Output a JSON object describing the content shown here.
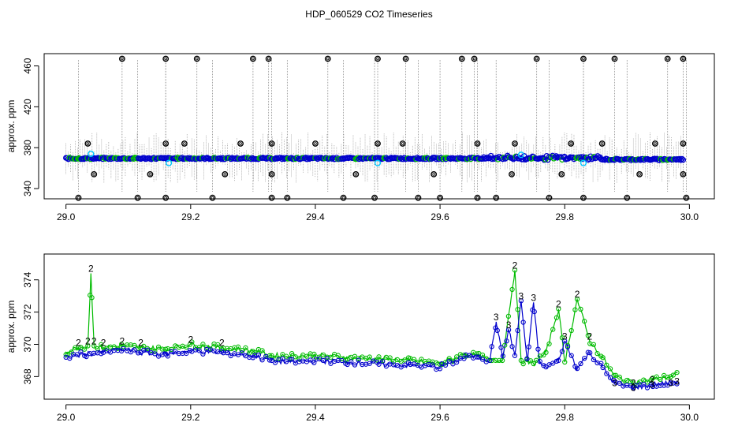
{
  "title": "HDP_060529  CO2 Timeseries",
  "colors": {
    "black": "#000000",
    "grey": "#8c8c8c",
    "blue": "#0000cc",
    "green": "#00bb00",
    "cyan": "#00c8ff"
  },
  "chart_data": [
    {
      "type": "scatter",
      "ylabel": "approx. ppm",
      "xlabel": "",
      "xlim": [
        28.965,
        30.04
      ],
      "ylim": [
        330,
        472
      ],
      "xticks": [
        "29.0",
        "29.2",
        "29.4",
        "29.6",
        "29.8",
        "30.0"
      ],
      "xtick_values": [
        29.0,
        29.2,
        29.4,
        29.6,
        29.8,
        30.0
      ],
      "yticks": [
        "340",
        "380",
        "420",
        "460"
      ],
      "ytick_values": [
        340,
        380,
        420,
        460
      ],
      "baseline_ppm": 369.5,
      "grey_spike_bands": [
        [
          370,
          392
        ],
        [
          352,
          370
        ]
      ],
      "outliers_high": [
        29.09,
        29.16,
        29.21,
        29.3,
        29.325,
        29.42,
        29.5,
        29.545,
        29.635,
        29.655,
        29.755,
        29.83,
        29.88,
        29.965,
        29.99
      ],
      "outliers_mid_high": [
        29.035,
        29.16,
        29.19,
        29.28,
        29.33,
        29.4,
        29.5,
        29.54,
        29.66,
        29.72,
        29.81,
        29.86,
        29.945,
        29.99
      ],
      "outliers_mid_low": [
        29.045,
        29.135,
        29.255,
        29.33,
        29.465,
        29.59,
        29.715,
        29.795,
        29.92,
        29.99
      ],
      "outliers_low": [
        29.02,
        29.115,
        29.16,
        29.235,
        29.33,
        29.355,
        29.445,
        29.495,
        29.565,
        29.6,
        29.66,
        29.69,
        29.775,
        29.83,
        29.9,
        29.995
      ],
      "cyan_points": [
        [
          29.04,
          374
        ],
        [
          29.165,
          365
        ],
        [
          29.5,
          365
        ],
        [
          29.73,
          373
        ],
        [
          29.83,
          365
        ]
      ]
    },
    {
      "type": "line",
      "ylabel": "approx. ppm",
      "xlabel": "",
      "xlim": [
        28.965,
        30.04
      ],
      "ylim": [
        366.6,
        375.6
      ],
      "xticks": [
        "29.0",
        "29.2",
        "29.4",
        "29.6",
        "29.8",
        "30.0"
      ],
      "xtick_values": [
        29.0,
        29.2,
        29.4,
        29.6,
        29.8,
        30.0
      ],
      "yticks": [
        "368",
        "370",
        "372",
        "374"
      ],
      "ytick_values": [
        368,
        370,
        372,
        374
      ],
      "series": [
        {
          "marker": "2",
          "color": "green",
          "x": [
            29.0,
            29.02,
            29.035,
            29.04,
            29.045,
            29.06,
            29.09,
            29.12,
            29.16,
            29.2,
            29.25,
            29.3,
            29.33,
            29.36,
            29.4,
            29.45,
            29.5,
            29.55,
            29.6,
            29.64,
            29.66,
            29.68,
            29.7,
            29.72,
            29.73,
            29.75,
            29.77,
            29.79,
            29.8,
            29.82,
            29.84,
            29.86,
            29.88,
            29.91,
            29.94,
            29.97,
            29.98
          ],
          "y": [
            369.5,
            369.8,
            369.9,
            374.4,
            369.9,
            369.8,
            369.9,
            369.8,
            369.7,
            370.0,
            369.8,
            369.6,
            369.3,
            369.3,
            369.3,
            369.2,
            369.1,
            369.0,
            368.8,
            369.4,
            369.3,
            369.0,
            369.0,
            374.6,
            369.0,
            368.8,
            369.5,
            372.2,
            368.9,
            372.8,
            370.2,
            369.2,
            368.0,
            367.6,
            367.8,
            368.0,
            368.2
          ]
        },
        {
          "marker": "3",
          "color": "blue",
          "x": [
            29.0,
            29.03,
            29.06,
            29.09,
            29.12,
            29.16,
            29.2,
            29.25,
            29.3,
            29.33,
            29.36,
            29.4,
            29.45,
            29.5,
            29.55,
            29.6,
            29.64,
            29.66,
            29.68,
            29.69,
            29.7,
            29.71,
            29.72,
            29.73,
            29.74,
            29.75,
            29.76,
            29.77,
            29.79,
            29.8,
            29.82,
            29.84,
            29.86,
            29.88,
            29.91,
            29.94,
            29.97,
            29.98
          ],
          "y": [
            369.2,
            369.4,
            369.5,
            369.7,
            369.5,
            369.4,
            369.6,
            369.5,
            369.3,
            369.0,
            368.9,
            369.0,
            368.9,
            368.8,
            368.7,
            368.6,
            369.2,
            369.3,
            369.0,
            371.4,
            369.2,
            370.9,
            369.3,
            372.7,
            368.9,
            372.6,
            368.8,
            368.6,
            369.0,
            370.2,
            368.5,
            369.5,
            368.6,
            367.6,
            367.3,
            367.5,
            367.6,
            367.7
          ]
        }
      ]
    }
  ]
}
